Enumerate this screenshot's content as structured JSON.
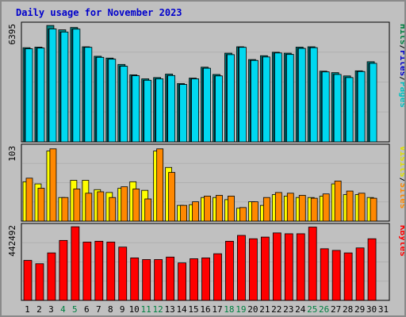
{
  "title": "Daily usage for November 2023",
  "colors": {
    "hits": "#00c8c8",
    "files": "#00a0ff",
    "pages": "#00d0d0",
    "visits": "#ffff00",
    "sites": "#ff8800",
    "kbytes": "#ff0000",
    "weekend_day": "#008040",
    "weekday": "#000000",
    "panel_bg": "#c0c0c0"
  },
  "legend_top": [
    {
      "text": "Hits",
      "color": "#008040"
    },
    {
      "text": "/",
      "color": "#000000"
    },
    {
      "text": "Files",
      "color": "#0000cc"
    },
    {
      "text": "/",
      "color": "#000000"
    },
    {
      "text": "Pages",
      "color": "#00c0c0"
    }
  ],
  "legend_mid": [
    {
      "text": "Visits",
      "color": "#e0e000"
    },
    {
      "text": "/",
      "color": "#000000"
    },
    {
      "text": "Sites",
      "color": "#ff8800"
    }
  ],
  "legend_bot": [
    {
      "text": "KBytes",
      "color": "#ff0000"
    }
  ],
  "chart_data": [
    {
      "type": "bar",
      "name": "Hits/Files/Pages",
      "ymax_label": "6395",
      "ylim": [
        0,
        6395
      ],
      "categories": [
        "1",
        "2",
        "3",
        "4",
        "5",
        "6",
        "7",
        "8",
        "9",
        "10",
        "11",
        "12",
        "13",
        "14",
        "15",
        "16",
        "17",
        "18",
        "19",
        "20",
        "21",
        "22",
        "23",
        "24",
        "25",
        "26",
        "27",
        "28",
        "29",
        "30",
        "31"
      ],
      "weekend_days": [
        "4",
        "5",
        "11",
        "12",
        "18",
        "19",
        "25",
        "26"
      ],
      "series": [
        {
          "name": "Hits",
          "values": [
            5170,
            5200,
            6390,
            6150,
            6280,
            5220,
            4700,
            4600,
            4250,
            3680,
            3460,
            3530,
            3720,
            3200,
            3500,
            4100,
            3700,
            4870,
            5220,
            4520,
            4730,
            4920,
            4870,
            5200,
            5220,
            3880,
            3800,
            3620,
            3900,
            4400,
            null
          ]
        },
        {
          "name": "Files",
          "values": [
            5110,
            5150,
            6200,
            6030,
            6190,
            5190,
            4640,
            4540,
            4150,
            3630,
            3380,
            3460,
            3640,
            3150,
            3460,
            4040,
            3620,
            4790,
            5190,
            4470,
            4660,
            4880,
            4800,
            5130,
            5170,
            3840,
            3700,
            3530,
            3860,
            4310,
            null
          ]
        },
        {
          "name": "Pages",
          "values": [
            5110,
            5150,
            6200,
            6030,
            6190,
            5190,
            4640,
            4540,
            4150,
            3630,
            3380,
            3460,
            3640,
            3150,
            3460,
            4040,
            3620,
            4790,
            5190,
            4470,
            4660,
            4880,
            4800,
            5130,
            5170,
            3840,
            3700,
            3530,
            3860,
            4310,
            null
          ]
        }
      ]
    },
    {
      "type": "bar",
      "name": "Visits/Sites",
      "ymax_label": "103",
      "ylim": [
        0,
        103
      ],
      "categories": [
        "1",
        "2",
        "3",
        "4",
        "5",
        "6",
        "7",
        "8",
        "9",
        "10",
        "11",
        "12",
        "13",
        "14",
        "15",
        "16",
        "17",
        "18",
        "19",
        "20",
        "21",
        "22",
        "23",
        "24",
        "25",
        "26",
        "27",
        "28",
        "29",
        "30",
        "31"
      ],
      "series": [
        {
          "name": "Visits",
          "values": [
            55,
            52,
            98,
            33,
            57,
            57,
            44,
            40,
            46,
            55,
            43,
            98,
            75,
            22,
            23,
            33,
            33,
            30,
            18,
            27,
            22,
            37,
            35,
            33,
            33,
            35,
            52,
            37,
            37,
            33,
            null
          ]
        },
        {
          "name": "Sites",
          "values": [
            60,
            46,
            101,
            33,
            45,
            39,
            41,
            33,
            48,
            45,
            31,
            101,
            68,
            22,
            27,
            35,
            36,
            35,
            19,
            27,
            33,
            40,
            39,
            36,
            32,
            38,
            56,
            42,
            39,
            32,
            null
          ]
        }
      ]
    },
    {
      "type": "bar",
      "name": "KBytes",
      "ymax_label": "442492",
      "ylim": [
        0,
        442492
      ],
      "categories": [
        "1",
        "2",
        "3",
        "4",
        "5",
        "6",
        "7",
        "8",
        "9",
        "10",
        "11",
        "12",
        "13",
        "14",
        "15",
        "16",
        "17",
        "18",
        "19",
        "20",
        "21",
        "22",
        "23",
        "24",
        "25",
        "26",
        "27",
        "28",
        "29",
        "30",
        "31"
      ],
      "series": [
        {
          "name": "KBytes",
          "values": [
            240000,
            220000,
            285000,
            360000,
            442000,
            350000,
            355000,
            350000,
            320000,
            255000,
            245000,
            245000,
            260000,
            225000,
            250000,
            255000,
            280000,
            355000,
            390000,
            370000,
            380000,
            405000,
            400000,
            400000,
            440000,
            310000,
            300000,
            285000,
            315000,
            370000,
            null
          ]
        }
      ]
    }
  ]
}
